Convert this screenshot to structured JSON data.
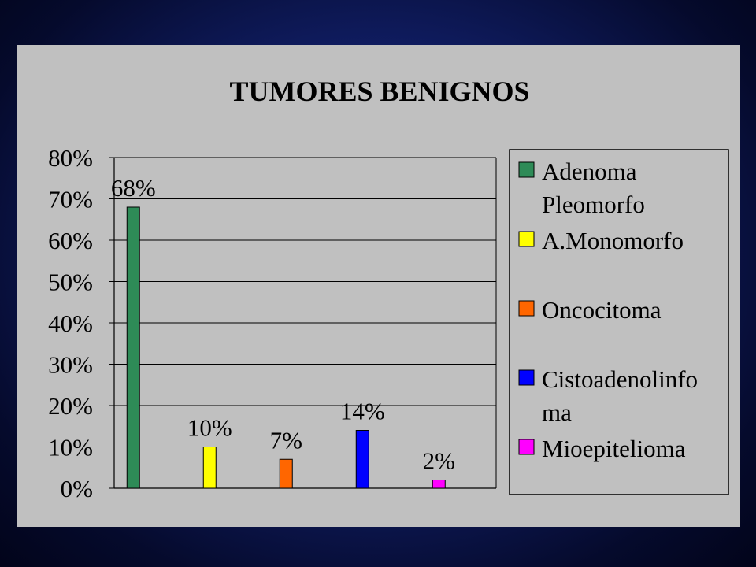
{
  "chart_data": {
    "type": "bar",
    "title": "TUMORES BENIGNOS",
    "categories": [
      "Adenoma Pleomorfo",
      "A.Monomorfo",
      "Oncocitoma",
      "Cistoadenolinfoma",
      "Mioepitelioma"
    ],
    "values": [
      68,
      10,
      7,
      14,
      2
    ],
    "data_labels": [
      "68%",
      "10%",
      "7%",
      "14%",
      "2%"
    ],
    "colors": [
      "#2e8b57",
      "#ffff00",
      "#ff6600",
      "#0000ff",
      "#ff00ff"
    ],
    "ylim": [
      0,
      80
    ],
    "yticks": [
      "0%",
      "10%",
      "20%",
      "30%",
      "40%",
      "50%",
      "60%",
      "70%",
      "80%"
    ],
    "grid": true,
    "legend_position": "right",
    "legend": [
      {
        "lines": [
          "Adenoma",
          "Pleomorfo"
        ],
        "color": "#2e8b57"
      },
      {
        "lines": [
          "A.Monomorfo"
        ],
        "color": "#ffff00"
      },
      {
        "lines": [
          "Oncocitoma"
        ],
        "color": "#ff6600"
      },
      {
        "lines": [
          "Cistoadenolinfo",
          "ma"
        ],
        "color": "#0000ff"
      },
      {
        "lines": [
          "Mioepitelioma"
        ],
        "color": "#ff00ff"
      }
    ]
  }
}
